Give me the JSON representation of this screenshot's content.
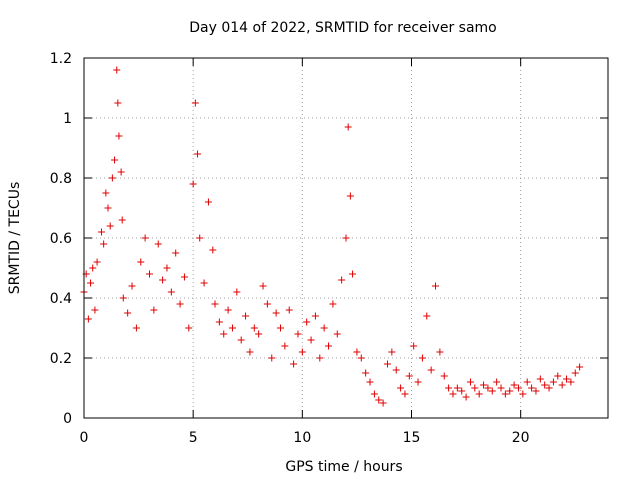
{
  "chart_data": {
    "type": "scatter",
    "title": "Day 014 of 2022, SRMTID for receiver samo",
    "xlabel": "GPS time / hours",
    "ylabel": "SRMTID / TECUs",
    "xlim": [
      0,
      24
    ],
    "ylim": [
      0,
      1.2
    ],
    "x_ticks": [
      0,
      5,
      10,
      15,
      20
    ],
    "x_tick_labels": [
      "0",
      "5",
      "10",
      "15",
      "20"
    ],
    "y_ticks": [
      0,
      0.2,
      0.4,
      0.6,
      0.8,
      1.0,
      1.2
    ],
    "y_tick_labels": [
      "0",
      "0.2",
      "0.4",
      "0.6",
      "0.8",
      "1",
      "1.2"
    ],
    "grid": true,
    "marker": "plus",
    "color": "#e00000",
    "series": [
      {
        "name": "SRMTID",
        "x": [
          0.0,
          0.1,
          0.2,
          0.3,
          0.4,
          0.5,
          0.6,
          0.8,
          0.9,
          1.0,
          1.1,
          1.2,
          1.3,
          1.4,
          1.5,
          1.55,
          1.6,
          1.7,
          1.75,
          1.8,
          2.0,
          2.2,
          2.4,
          2.6,
          2.8,
          3.0,
          3.2,
          3.4,
          3.6,
          3.8,
          4.0,
          4.2,
          4.4,
          4.6,
          4.8,
          5.0,
          5.1,
          5.2,
          5.3,
          5.5,
          5.7,
          5.9,
          6.0,
          6.2,
          6.4,
          6.6,
          6.8,
          7.0,
          7.2,
          7.4,
          7.6,
          7.8,
          8.0,
          8.2,
          8.4,
          8.6,
          8.8,
          9.0,
          9.2,
          9.4,
          9.6,
          9.8,
          10.0,
          10.2,
          10.4,
          10.6,
          10.8,
          11.0,
          11.2,
          11.4,
          11.6,
          11.8,
          12.0,
          12.1,
          12.2,
          12.3,
          12.5,
          12.7,
          12.9,
          13.1,
          13.3,
          13.5,
          13.7,
          13.9,
          14.1,
          14.3,
          14.5,
          14.7,
          14.9,
          15.1,
          15.3,
          15.5,
          15.7,
          15.9,
          16.1,
          16.3,
          16.5,
          16.7,
          16.9,
          17.1,
          17.3,
          17.5,
          17.7,
          17.9,
          18.1,
          18.3,
          18.5,
          18.7,
          18.9,
          19.1,
          19.3,
          19.5,
          19.7,
          19.9,
          20.1,
          20.3,
          20.5,
          20.7,
          20.9,
          21.1,
          21.3,
          21.5,
          21.7,
          21.9,
          22.1,
          22.3,
          22.5,
          22.7
        ],
        "y": [
          0.42,
          0.48,
          0.33,
          0.45,
          0.5,
          0.36,
          0.52,
          0.62,
          0.58,
          0.75,
          0.7,
          0.64,
          0.8,
          0.86,
          1.16,
          1.05,
          0.94,
          0.82,
          0.66,
          0.4,
          0.35,
          0.44,
          0.3,
          0.52,
          0.6,
          0.48,
          0.36,
          0.58,
          0.46,
          0.5,
          0.42,
          0.55,
          0.38,
          0.47,
          0.3,
          0.78,
          1.05,
          0.88,
          0.6,
          0.45,
          0.72,
          0.56,
          0.38,
          0.32,
          0.28,
          0.36,
          0.3,
          0.42,
          0.26,
          0.34,
          0.22,
          0.3,
          0.28,
          0.44,
          0.38,
          0.2,
          0.35,
          0.3,
          0.24,
          0.36,
          0.18,
          0.28,
          0.22,
          0.32,
          0.26,
          0.34,
          0.2,
          0.3,
          0.24,
          0.38,
          0.28,
          0.46,
          0.6,
          0.97,
          0.74,
          0.48,
          0.22,
          0.2,
          0.15,
          0.12,
          0.08,
          0.06,
          0.05,
          0.18,
          0.22,
          0.16,
          0.1,
          0.08,
          0.14,
          0.24,
          0.12,
          0.2,
          0.34,
          0.16,
          0.44,
          0.22,
          0.14,
          0.1,
          0.08,
          0.1,
          0.09,
          0.07,
          0.12,
          0.1,
          0.08,
          0.11,
          0.1,
          0.09,
          0.12,
          0.1,
          0.08,
          0.09,
          0.11,
          0.1,
          0.08,
          0.12,
          0.1,
          0.09,
          0.13,
          0.11,
          0.1,
          0.12,
          0.14,
          0.11,
          0.13,
          0.12,
          0.15,
          0.17
        ]
      }
    ]
  }
}
